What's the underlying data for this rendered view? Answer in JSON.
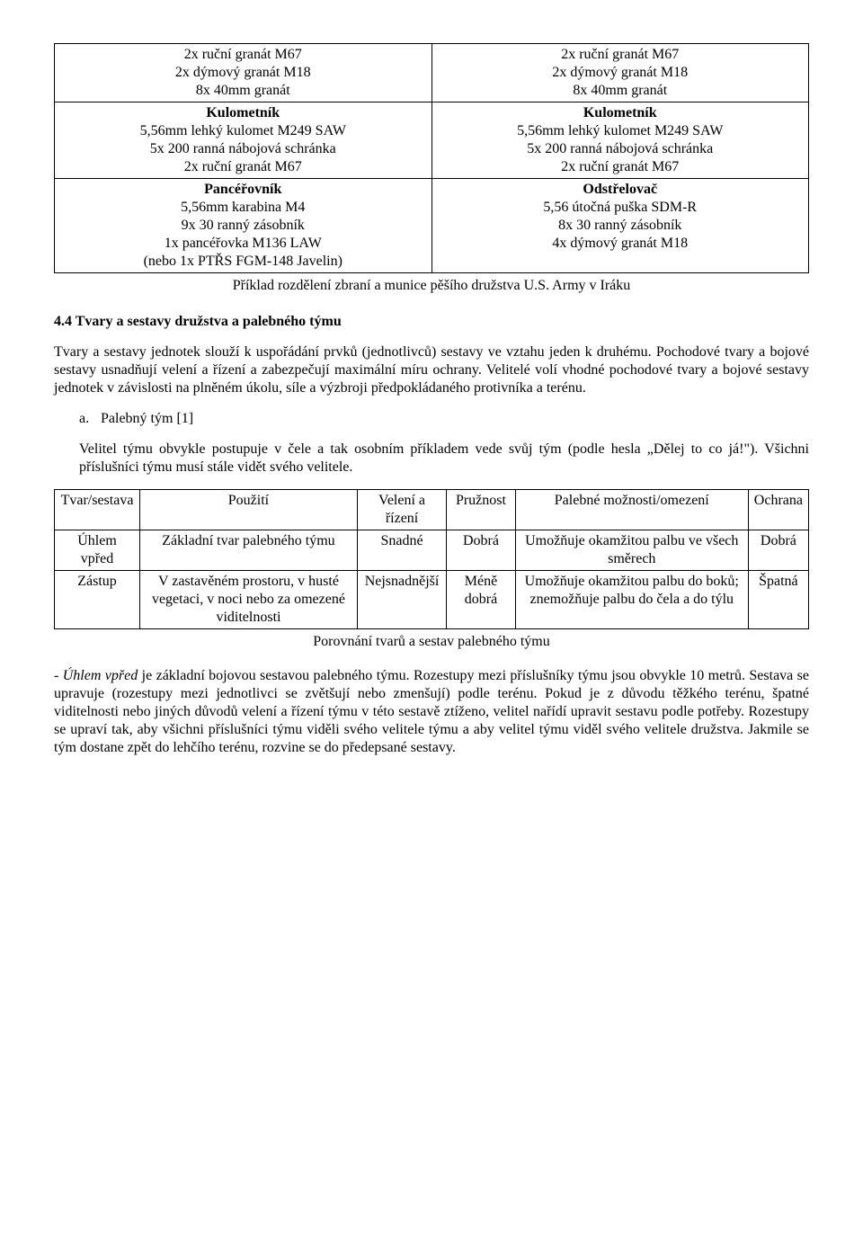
{
  "table1": {
    "rows": [
      {
        "left": "2x ruční granát M67\n2x dýmový granát M18\n8x 40mm granát",
        "right": "2x ruční granát M67\n2x dýmový granát M18\n8x 40mm granát"
      },
      {
        "left_title": "Kulometník",
        "left": "5,56mm lehký kulomet M249 SAW\n5x 200 ranná nábojová schránka\n2x ruční granát M67",
        "right_title": "Kulometník",
        "right": "5,56mm lehký kulomet M249 SAW\n5x 200 ranná nábojová schránka\n2x ruční granát M67"
      },
      {
        "left_title": "Pancéřovník",
        "left": "5,56mm karabina M4\n9x 30 ranný zásobník\n1x pancéřovka M136 LAW\n(nebo 1x PTŘS FGM-148 Javelin)",
        "right_title": "Odstřelovač",
        "right": "5,56 útočná puška SDM-R\n8x 30 ranný zásobník\n4x dýmový granát M18"
      }
    ],
    "caption": "Příklad rozdělení zbraní a munice pěšího družstva U.S. Army v Iráku"
  },
  "section_title": "4.4 Tvary a sestavy družstva a palebného týmu",
  "body1": "Tvary a sestavy jednotek slouží k uspořádání prvků (jednotlivců) sestavy ve vztahu jeden k druhému. Pochodové tvary a bojové sestavy usnadňují velení a řízení a zabezpečují maximální míru ochrany. Velitelé volí vhodné pochodové tvary a bojové sestavy jednotek v závislosti na plněném úkolu, síle a výzbroji předpokládaného protivníka a terénu.",
  "list_a_label": "a.",
  "list_a_text": "Palebný tým [1]",
  "body2": "Velitel týmu obvykle postupuje v čele a tak osobním příkladem vede svůj tým (podle hesla „Dělej to co já!\"). Všichni příslušníci týmu musí stále vidět svého velitele.",
  "table2": {
    "headers": [
      "Tvar/sestava",
      "Použití",
      "Velení a řízení",
      "Pružnost",
      "Palebné možnosti/omezení",
      "Ochrana"
    ],
    "rows": [
      {
        "c0": "Úhlem vpřed",
        "c1": "Základní tvar palebného týmu",
        "c2": "Snadné",
        "c3": "Dobrá",
        "c4": "Umožňuje okamžitou palbu ve všech směrech",
        "c5": "Dobrá"
      },
      {
        "c0": "Zástup",
        "c1": "V zastavěném prostoru, v husté vegetaci, v noci nebo za omezené viditelnosti",
        "c2": "Nejsnadnější",
        "c3": "Méně dobrá",
        "c4": "Umožňuje okamžitou palbu do boků; znemožňuje palbu do čela a do týlu",
        "c5": "Špatná"
      }
    ],
    "caption": "Porovnání tvarů a sestav palebného týmu"
  },
  "dash_para_lead": "- ",
  "dash_para_italic": "Úhlem vpřed",
  "dash_para_rest": " je základní bojovou sestavou palebného týmu. Rozestupy mezi příslušníky týmu jsou obvykle 10 metrů. Sestava se upravuje (rozestupy mezi jednotlivci se zvětšují nebo zmenšují) podle terénu. Pokud je z důvodu těžkého terénu, špatné viditelnosti nebo jiných důvodů velení a řízení týmu v této sestavě ztíženo, velitel nařídí upravit sestavu podle potřeby. Rozestupy se upraví tak, aby všichni příslušníci týmu viděli svého velitele týmu a aby velitel týmu viděl svého velitele družstva. Jakmile se tým dostane zpět do lehčího terénu, rozvine se do předepsané sestavy."
}
